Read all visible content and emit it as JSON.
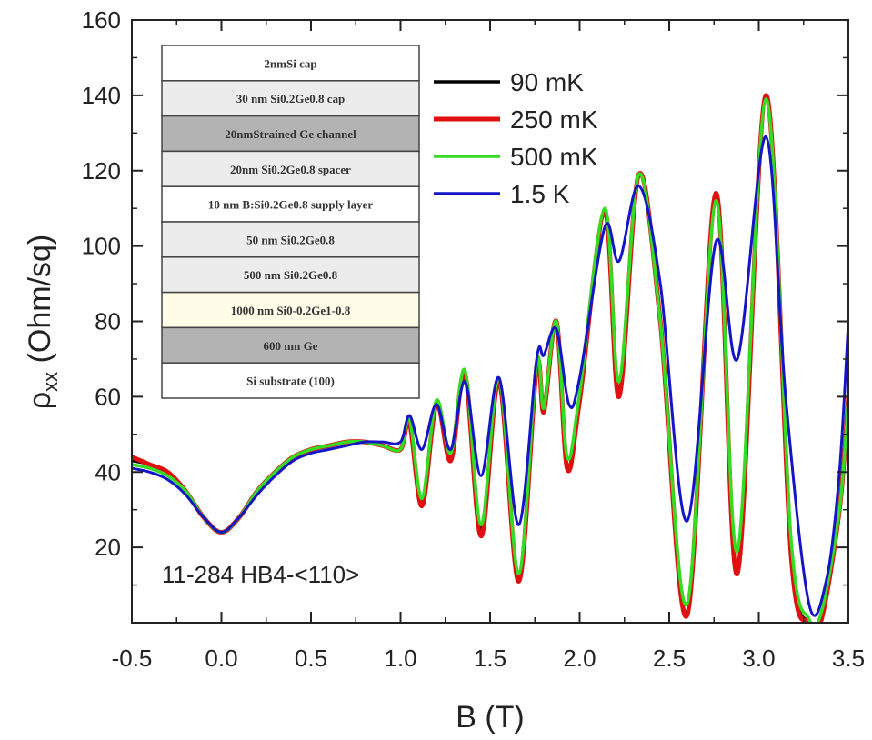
{
  "chart_data": {
    "type": "line",
    "xlabel": "B (T)",
    "ylabel_main": "ρ",
    "ylabel_sub": "xx",
    "ylabel_unit": " (Ohm/sq)",
    "xlim": [
      -0.5,
      3.5
    ],
    "ylim": [
      0,
      160
    ],
    "xticks": [
      -0.5,
      0.0,
      0.5,
      1.0,
      1.5,
      2.0,
      2.5,
      3.0,
      3.5
    ],
    "xtick_labels": [
      "-0.5",
      "0.0",
      "0.5",
      "1.0",
      "1.5",
      "2.0",
      "2.5",
      "3.0",
      "3.5"
    ],
    "yticks": [
      20,
      40,
      60,
      80,
      100,
      120,
      140,
      160
    ],
    "ytick_labels": [
      "20",
      "40",
      "60",
      "80",
      "100",
      "120",
      "140",
      "160"
    ],
    "grid": false,
    "legend_position": "top-right",
    "annotation": "11-284 HB4-<110>",
    "series": [
      {
        "name": "90 mK",
        "color": "#000000",
        "points": [
          [
            -0.5,
            43
          ],
          [
            -0.4,
            42
          ],
          [
            -0.3,
            40
          ],
          [
            -0.2,
            35
          ],
          [
            -0.1,
            28
          ],
          [
            0.0,
            24
          ],
          [
            0.1,
            28
          ],
          [
            0.2,
            35
          ],
          [
            0.3,
            40
          ],
          [
            0.4,
            44
          ],
          [
            0.5,
            46
          ],
          [
            0.6,
            47
          ],
          [
            0.7,
            48
          ],
          [
            0.8,
            48
          ],
          [
            0.9,
            47
          ],
          [
            1.0,
            46
          ],
          [
            1.05,
            53
          ],
          [
            1.12,
            32
          ],
          [
            1.2,
            58
          ],
          [
            1.28,
            44
          ],
          [
            1.36,
            66
          ],
          [
            1.45,
            25
          ],
          [
            1.55,
            64
          ],
          [
            1.66,
            12
          ],
          [
            1.76,
            68
          ],
          [
            1.8,
            58
          ],
          [
            1.87,
            80
          ],
          [
            1.93,
            42
          ],
          [
            2.0,
            60
          ],
          [
            2.14,
            109
          ],
          [
            2.22,
            62
          ],
          [
            2.33,
            119
          ],
          [
            2.45,
            80
          ],
          [
            2.6,
            3
          ],
          [
            2.76,
            113
          ],
          [
            2.88,
            15
          ],
          [
            3.04,
            140
          ],
          [
            3.18,
            20
          ],
          [
            3.28,
            0
          ],
          [
            3.35,
            2
          ],
          [
            3.45,
            30
          ],
          [
            3.5,
            60
          ]
        ]
      },
      {
        "name": "250 mK",
        "color": "#e01010",
        "points": [
          [
            -0.5,
            44
          ],
          [
            -0.4,
            42
          ],
          [
            -0.3,
            40
          ],
          [
            -0.2,
            35
          ],
          [
            -0.1,
            28
          ],
          [
            0.0,
            24
          ],
          [
            0.1,
            28
          ],
          [
            0.2,
            35
          ],
          [
            0.3,
            40
          ],
          [
            0.4,
            44
          ],
          [
            0.5,
            46
          ],
          [
            0.6,
            47
          ],
          [
            0.7,
            48
          ],
          [
            0.8,
            48
          ],
          [
            0.9,
            47
          ],
          [
            1.0,
            46
          ],
          [
            1.05,
            53
          ],
          [
            1.12,
            31
          ],
          [
            1.2,
            58
          ],
          [
            1.28,
            43
          ],
          [
            1.36,
            66
          ],
          [
            1.45,
            23
          ],
          [
            1.55,
            64
          ],
          [
            1.66,
            11
          ],
          [
            1.76,
            68
          ],
          [
            1.8,
            56
          ],
          [
            1.87,
            80
          ],
          [
            1.93,
            41
          ],
          [
            2.0,
            59
          ],
          [
            2.14,
            109
          ],
          [
            2.22,
            60
          ],
          [
            2.33,
            119
          ],
          [
            2.45,
            80
          ],
          [
            2.6,
            2
          ],
          [
            2.76,
            114
          ],
          [
            2.88,
            13
          ],
          [
            3.04,
            140
          ],
          [
            3.18,
            18
          ],
          [
            3.28,
            0
          ],
          [
            3.35,
            1
          ],
          [
            3.45,
            30
          ],
          [
            3.5,
            60
          ]
        ]
      },
      {
        "name": "500 mK",
        "color": "#33dd22",
        "points": [
          [
            -0.5,
            42
          ],
          [
            -0.4,
            41
          ],
          [
            -0.3,
            39
          ],
          [
            -0.2,
            35
          ],
          [
            -0.1,
            28
          ],
          [
            0.0,
            24
          ],
          [
            0.1,
            28
          ],
          [
            0.2,
            35
          ],
          [
            0.3,
            40
          ],
          [
            0.4,
            44
          ],
          [
            0.5,
            46
          ],
          [
            0.6,
            47
          ],
          [
            0.7,
            48
          ],
          [
            0.8,
            48
          ],
          [
            0.9,
            47
          ],
          [
            1.0,
            46
          ],
          [
            1.05,
            54
          ],
          [
            1.12,
            33
          ],
          [
            1.2,
            59
          ],
          [
            1.28,
            45
          ],
          [
            1.36,
            67
          ],
          [
            1.45,
            26
          ],
          [
            1.55,
            65
          ],
          [
            1.66,
            13
          ],
          [
            1.76,
            69
          ],
          [
            1.8,
            57
          ],
          [
            1.87,
            80
          ],
          [
            1.93,
            44
          ],
          [
            2.0,
            61
          ],
          [
            2.14,
            110
          ],
          [
            2.22,
            64
          ],
          [
            2.33,
            119
          ],
          [
            2.45,
            80
          ],
          [
            2.6,
            5
          ],
          [
            2.76,
            112
          ],
          [
            2.88,
            19
          ],
          [
            3.04,
            139
          ],
          [
            3.18,
            22
          ],
          [
            3.28,
            1
          ],
          [
            3.35,
            3
          ],
          [
            3.45,
            30
          ],
          [
            3.5,
            60
          ]
        ]
      },
      {
        "name": "1.5 K",
        "color": "#1515c8",
        "points": [
          [
            -0.5,
            41
          ],
          [
            -0.4,
            40
          ],
          [
            -0.3,
            38
          ],
          [
            -0.2,
            34
          ],
          [
            -0.1,
            28
          ],
          [
            0.0,
            24
          ],
          [
            0.1,
            28
          ],
          [
            0.2,
            34
          ],
          [
            0.3,
            39
          ],
          [
            0.4,
            43
          ],
          [
            0.5,
            45
          ],
          [
            0.6,
            46
          ],
          [
            0.7,
            47
          ],
          [
            0.8,
            48
          ],
          [
            0.9,
            48
          ],
          [
            1.0,
            48
          ],
          [
            1.05,
            55
          ],
          [
            1.12,
            46
          ],
          [
            1.2,
            58
          ],
          [
            1.28,
            46
          ],
          [
            1.36,
            64
          ],
          [
            1.45,
            39
          ],
          [
            1.55,
            65
          ],
          [
            1.66,
            26
          ],
          [
            1.76,
            70
          ],
          [
            1.8,
            71
          ],
          [
            1.87,
            78
          ],
          [
            1.94,
            58
          ],
          [
            2.0,
            65
          ],
          [
            2.14,
            105
          ],
          [
            2.22,
            96
          ],
          [
            2.33,
            116
          ],
          [
            2.45,
            90
          ],
          [
            2.6,
            27
          ],
          [
            2.76,
            101
          ],
          [
            2.88,
            70
          ],
          [
            3.04,
            129
          ],
          [
            3.15,
            60
          ],
          [
            3.28,
            5
          ],
          [
            3.38,
            12
          ],
          [
            3.45,
            40
          ],
          [
            3.5,
            80
          ]
        ]
      }
    ]
  },
  "inset": {
    "layers": [
      {
        "text": "2nmSi cap",
        "fill": "#ffffff"
      },
      {
        "text": "30 nm Si0.2Ge0.8 cap",
        "fill": "#ececec"
      },
      {
        "text": "20nmStrained Ge channel",
        "fill": "#b3b3b3"
      },
      {
        "text": "20nm Si0.2Ge0.8 spacer",
        "fill": "#ececec"
      },
      {
        "text": "10 nm B:Si0.2Ge0.8 supply layer",
        "fill": "#ffffff"
      },
      {
        "text": "50 nm Si0.2Ge0.8",
        "fill": "#ececec"
      },
      {
        "text": "500 nm Si0.2Ge0.8",
        "fill": "#ececec"
      },
      {
        "text": "1000 nm Si0-0.2Ge1-0.8",
        "fill": "#fffce8"
      },
      {
        "text": "600 nm Ge",
        "fill": "#b3b3b3"
      },
      {
        "text": "Si substrate (100)",
        "fill": "#ffffff"
      }
    ]
  }
}
